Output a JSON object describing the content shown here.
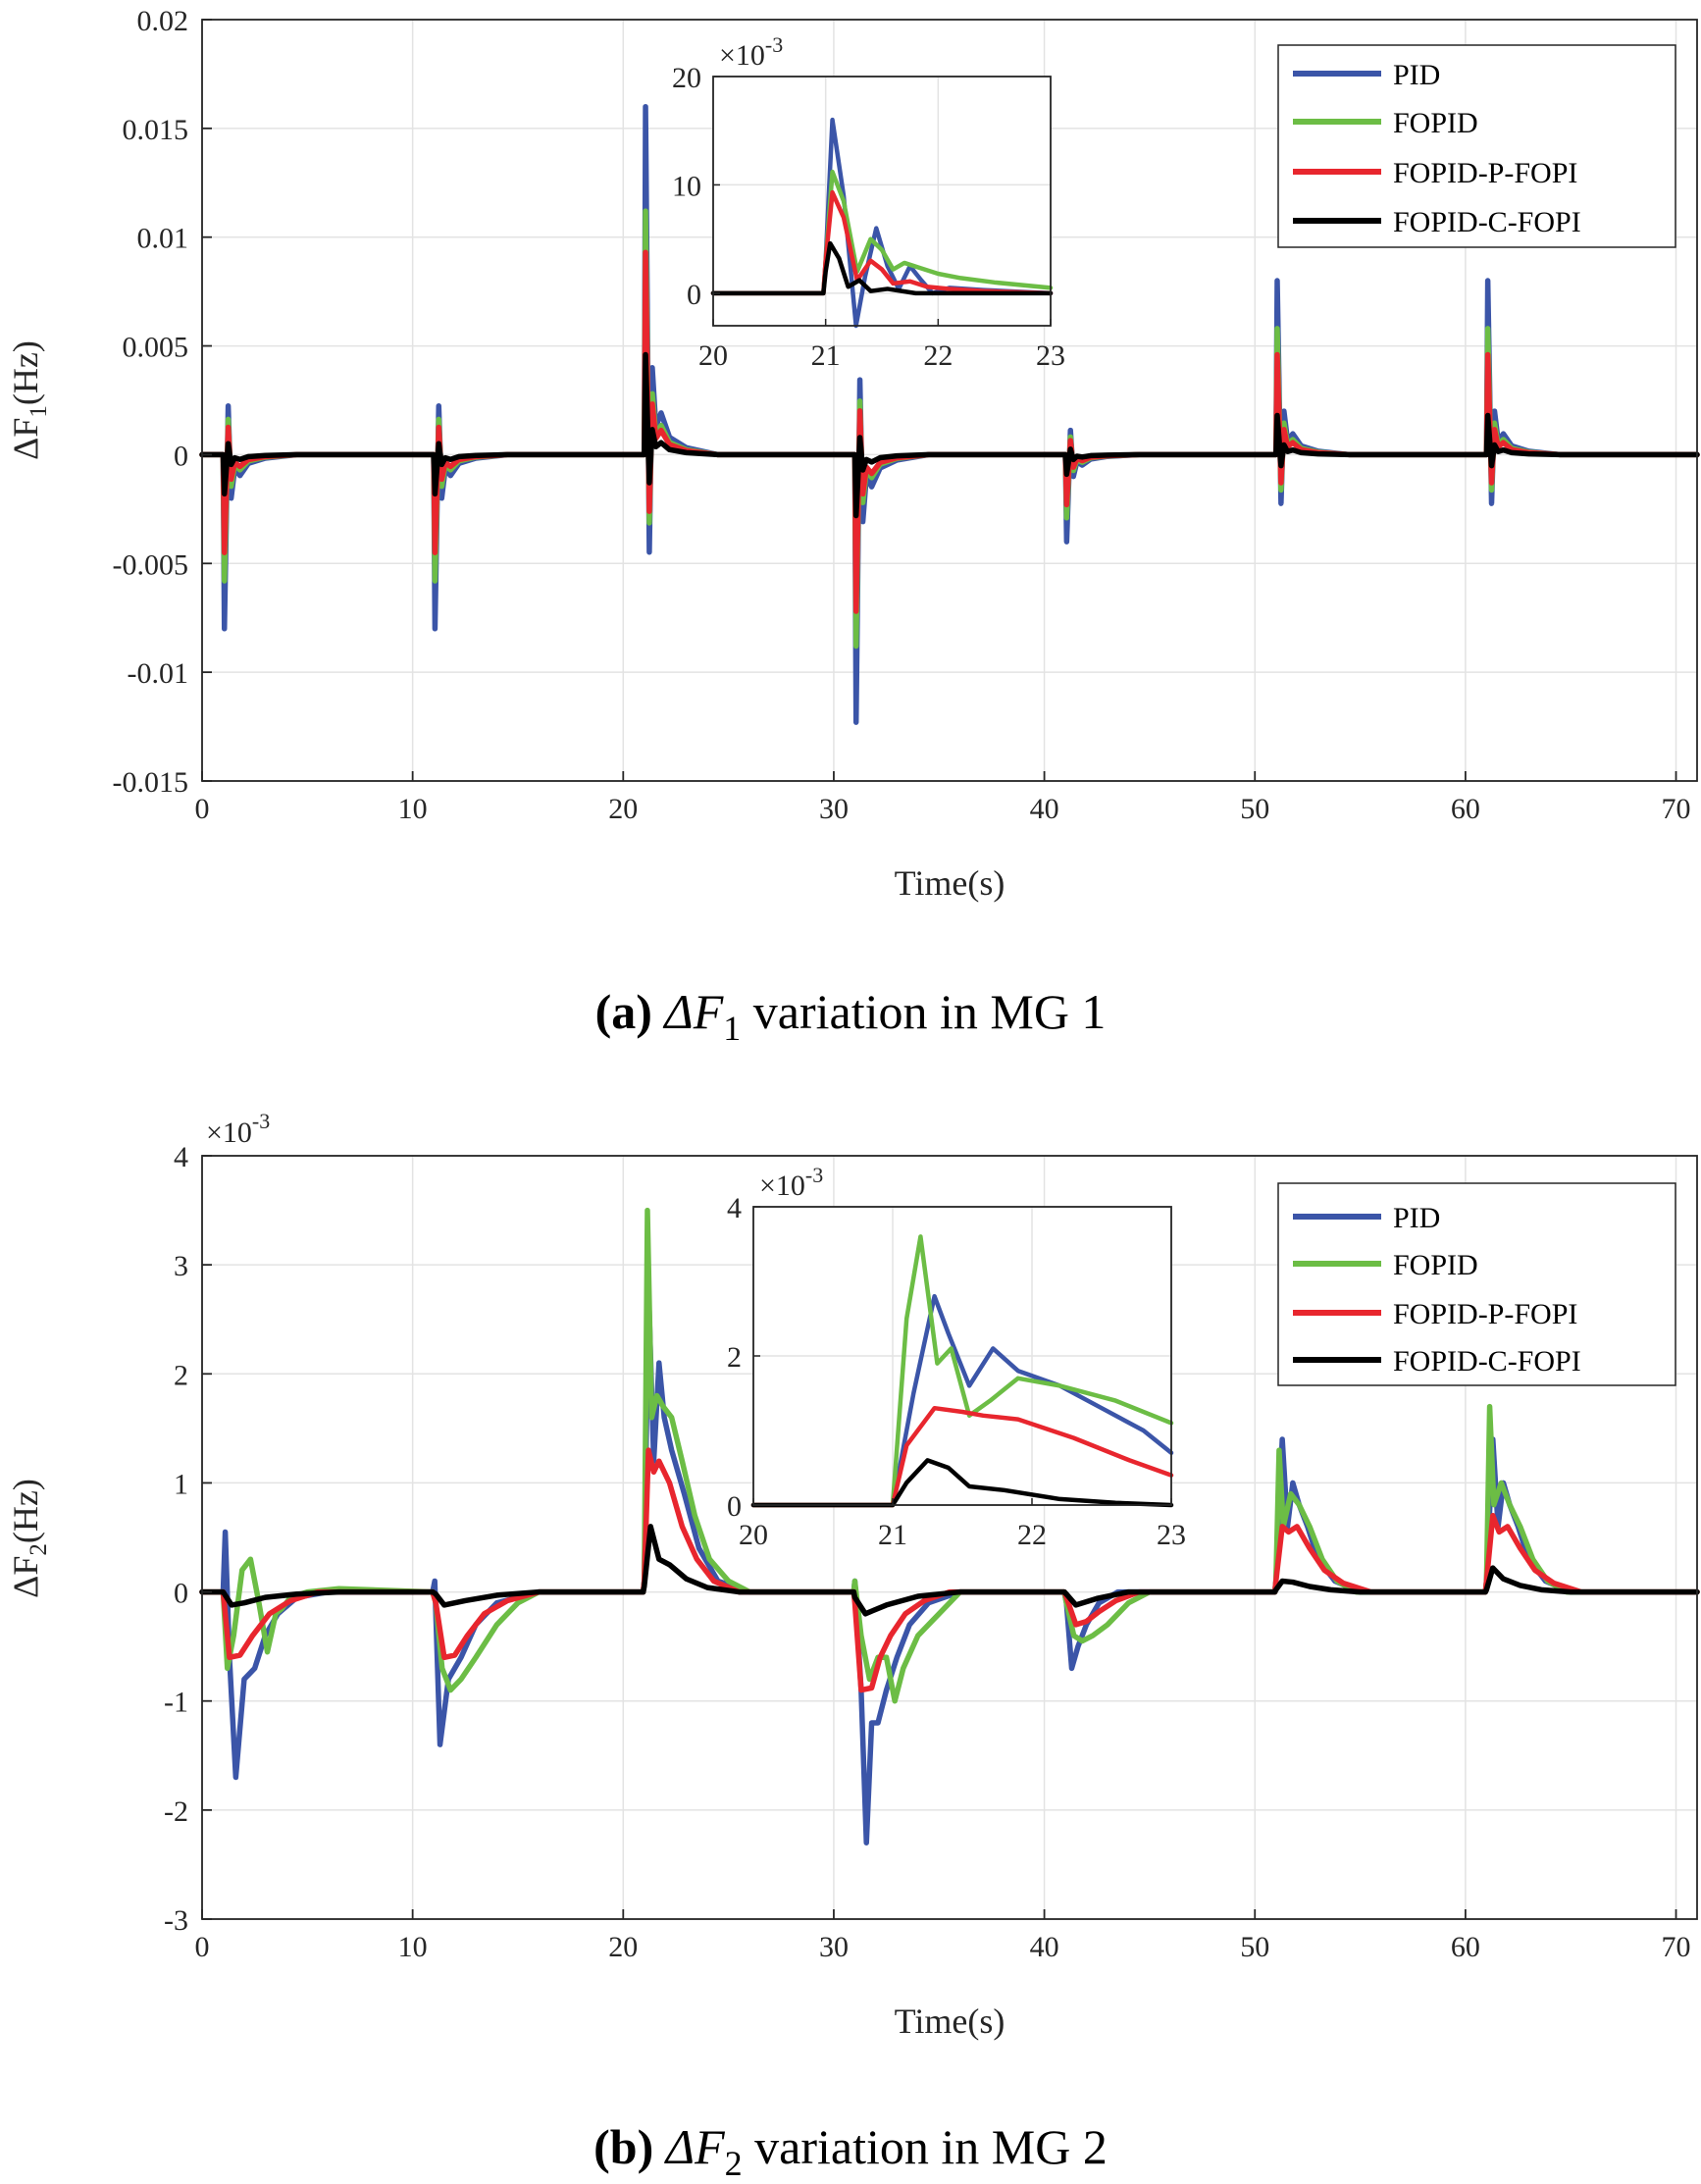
{
  "colors": {
    "PID": "#3b55a8",
    "FOPID": "#6cbd45",
    "FOPID-P-FOPI": "#e8262e",
    "FOPID-C-FOPI": "#000000"
  },
  "legend": [
    "PID",
    "FOPID",
    "FOPID-P-FOPI",
    "FOPID-C-FOPI"
  ],
  "chart_data": [
    {
      "id": "a",
      "type": "line",
      "xlabel": "Time(s)",
      "ylabel_base": "ΔF",
      "ylabel_sub": "1",
      "ylabel_unit": "(Hz)",
      "xlim": [
        0,
        71
      ],
      "ylim": [
        -0.015,
        0.02
      ],
      "xticks": [
        0,
        10,
        20,
        30,
        40,
        50,
        60,
        70
      ],
      "xtick_labels": [
        "0",
        "10",
        "20",
        "30",
        "40",
        "50",
        "60",
        "70"
      ],
      "yticks": [
        -0.015,
        -0.01,
        -0.005,
        0,
        0.005,
        0.01,
        0.015,
        0.02
      ],
      "ytick_labels": [
        "-0.015",
        "-0.01",
        "-0.005",
        "0",
        "0.005",
        "0.01",
        "0.015",
        "0.02"
      ],
      "y_exponent": "",
      "grid": true,
      "legend_position": "top-right",
      "caption_letter": "(a)",
      "caption_sym": "ΔF",
      "caption_sub": "1",
      "caption_rest": "variation in MG 1",
      "events": [
        {
          "t": 1.0,
          "peaks": {
            "PID": -0.008,
            "FOPID": -0.0058,
            "FOPID-P-FOPI": -0.0045,
            "FOPID-C-FOPI": -0.0018
          }
        },
        {
          "t": 11.0,
          "peaks": {
            "PID": -0.008,
            "FOPID": -0.0058,
            "FOPID-P-FOPI": -0.0045,
            "FOPID-C-FOPI": -0.0018
          }
        },
        {
          "t": 21.0,
          "peaks": {
            "PID": 0.016,
            "FOPID": 0.0112,
            "FOPID-P-FOPI": 0.0093,
            "FOPID-C-FOPI": 0.0046
          }
        },
        {
          "t": 31.0,
          "peaks": {
            "PID": -0.0123,
            "FOPID": -0.0088,
            "FOPID-P-FOPI": -0.0072,
            "FOPID-C-FOPI": -0.0028
          }
        },
        {
          "t": 41.0,
          "peaks": {
            "PID": -0.004,
            "FOPID": -0.0029,
            "FOPID-P-FOPI": -0.0023,
            "FOPID-C-FOPI": -0.0009
          }
        },
        {
          "t": 51.0,
          "peaks": {
            "PID": 0.008,
            "FOPID": 0.0058,
            "FOPID-P-FOPI": 0.0046,
            "FOPID-C-FOPI": 0.0018
          }
        },
        {
          "t": 61.0,
          "peaks": {
            "PID": 0.008,
            "FOPID": 0.0058,
            "FOPID-P-FOPI": 0.0046,
            "FOPID-C-FOPI": 0.0018
          }
        }
      ],
      "inset": {
        "xlim": [
          20,
          23
        ],
        "ylim": [
          -0.003,
          0.02
        ],
        "xticks": [
          20,
          21,
          22,
          23
        ],
        "xtick_labels": [
          "20",
          "21",
          "22",
          "23"
        ],
        "yticks": [
          0,
          0.01,
          0.02
        ],
        "ytick_labels": [
          "0",
          "10",
          "20"
        ],
        "y_exponent": "×10-3",
        "series": [
          {
            "name": "PID",
            "x": [
              20,
              20.98,
              21.0,
              21.06,
              21.16,
              21.27,
              21.35,
              21.45,
              21.55,
              21.65,
              21.75,
              21.85,
              21.95,
              22.1,
              22.4,
              23
            ],
            "y": [
              0,
              0,
              0.003,
              0.016,
              0.009,
              -0.003,
              0.0015,
              0.006,
              0.0025,
              0.0004,
              0.0025,
              0.0012,
              0,
              0.0005,
              0.0003,
              0
            ]
          },
          {
            "name": "FOPID",
            "x": [
              20,
              20.98,
              21.0,
              21.06,
              21.16,
              21.28,
              21.4,
              21.5,
              21.6,
              21.7,
              21.85,
              22.0,
              22.2,
              22.5,
              23
            ],
            "y": [
              0,
              0,
              0.003,
              0.0112,
              0.0085,
              0.002,
              0.005,
              0.004,
              0.0022,
              0.0028,
              0.0023,
              0.0018,
              0.0014,
              0.001,
              0.0005
            ]
          },
          {
            "name": "FOPID-P-FOPI",
            "x": [
              20,
              20.98,
              21.0,
              21.06,
              21.16,
              21.28,
              21.4,
              21.5,
              21.6,
              21.75,
              21.9,
              22.1,
              22.4,
              23
            ],
            "y": [
              0,
              0,
              0.003,
              0.0093,
              0.007,
              0.0012,
              0.003,
              0.0022,
              0.0009,
              0.0011,
              0.0006,
              0.0004,
              0.0002,
              0
            ]
          },
          {
            "name": "FOPID-C-FOPI",
            "x": [
              20,
              20.98,
              21.0,
              21.04,
              21.12,
              21.2,
              21.3,
              21.4,
              21.55,
              21.8,
              22.2,
              23
            ],
            "y": [
              0,
              0,
              0.002,
              0.0046,
              0.0032,
              0.0006,
              0.0012,
              0.0002,
              0.0004,
              0,
              0,
              0
            ]
          }
        ]
      }
    },
    {
      "id": "b",
      "type": "line",
      "xlabel": "Time(s)",
      "ylabel_base": "ΔF",
      "ylabel_sub": "2",
      "ylabel_unit": "(Hz)",
      "xlim": [
        0,
        71
      ],
      "ylim": [
        -0.003,
        0.004
      ],
      "xticks": [
        0,
        10,
        20,
        30,
        40,
        50,
        60,
        70
      ],
      "xtick_labels": [
        "0",
        "10",
        "20",
        "30",
        "40",
        "50",
        "60",
        "70"
      ],
      "yticks": [
        -0.003,
        -0.002,
        -0.001,
        0,
        0.001,
        0.002,
        0.003,
        0.004
      ],
      "ytick_labels": [
        "-3",
        "-2",
        "-1",
        "0",
        "1",
        "2",
        "3",
        "4"
      ],
      "y_exponent": "×10-3",
      "grid": true,
      "legend_position": "top-right",
      "caption_letter": "(b)",
      "caption_sym": "ΔF",
      "caption_sub": "2",
      "caption_rest": "variation in MG 2",
      "series": [
        {
          "name": "PID",
          "x": [
            0,
            1.0,
            1.1,
            1.3,
            1.6,
            2.0,
            2.5,
            3.0,
            3.6,
            4.5,
            6,
            10.95,
            11.05,
            11.3,
            11.7,
            12.3,
            13.0,
            14.0,
            16,
            20.95,
            21.0,
            21.2,
            21.45,
            21.7,
            21.95,
            22.3,
            22.9,
            23.6,
            24.5,
            26,
            30.95,
            31.0,
            31.3,
            31.55,
            31.8,
            32.1,
            32.5,
            33.0,
            33.6,
            34.5,
            36,
            40.95,
            41.05,
            41.3,
            41.6,
            42.0,
            42.6,
            43.5,
            45,
            50.95,
            51.0,
            51.3,
            51.55,
            51.8,
            52.1,
            52.5,
            53.0,
            53.8,
            55,
            60.95,
            61.0,
            61.3,
            61.55,
            61.8,
            62.1,
            62.5,
            63.0,
            63.8,
            65,
            71
          ],
          "y": [
            0,
            0,
            0.00055,
            -0.0006,
            -0.0017,
            -0.0008,
            -0.0007,
            -0.0004,
            -0.0002,
            -5e-05,
            0,
            0,
            0.0001,
            -0.0014,
            -0.0008,
            -0.0006,
            -0.0003,
            -0.0001,
            0,
            0,
            0.0001,
            0.0028,
            0.0012,
            0.0021,
            0.0016,
            0.0013,
            0.0009,
            0.0004,
            0.0001,
            0,
            0,
            0.0001,
            -0.0009,
            -0.0023,
            -0.0012,
            -0.0012,
            -0.0009,
            -0.0006,
            -0.0003,
            -0.0001,
            0,
            0,
            -0.0001,
            -0.0007,
            -0.0005,
            -0.0003,
            -0.0001,
            0,
            0,
            0,
            0.0001,
            0.0014,
            0.0006,
            0.001,
            0.0008,
            0.0006,
            0.0003,
            0.0001,
            0,
            0,
            0.0001,
            0.0014,
            0.0006,
            0.001,
            0.0008,
            0.0006,
            0.0003,
            0.0001,
            0,
            0
          ]
        },
        {
          "name": "FOPID",
          "x": [
            0,
            1.0,
            1.2,
            1.5,
            1.9,
            2.3,
            2.7,
            3.1,
            3.5,
            3.8,
            4.2,
            5,
            6.5,
            10.95,
            11.1,
            11.4,
            11.8,
            12.3,
            13.0,
            14.0,
            15.0,
            16,
            20.95,
            21.0,
            21.15,
            21.35,
            21.6,
            21.9,
            22.3,
            22.8,
            23.4,
            24.1,
            25,
            26,
            30.95,
            31.0,
            31.3,
            31.7,
            32.1,
            32.5,
            32.9,
            33.3,
            34,
            35,
            36,
            40.95,
            41.05,
            41.4,
            41.8,
            42.3,
            43.0,
            44,
            45,
            50.95,
            51.0,
            51.15,
            51.35,
            51.7,
            52.1,
            52.6,
            53.2,
            53.9,
            54.8,
            56,
            60.95,
            61.0,
            61.15,
            61.35,
            61.7,
            62.1,
            62.6,
            63.2,
            63.9,
            64.8,
            66,
            71
          ],
          "y": [
            0,
            0,
            -0.0007,
            -0.0004,
            0.0002,
            0.0003,
            -0.0001,
            -0.00055,
            -0.0002,
            -0.00015,
            -5e-05,
            0,
            3e-05,
            0,
            -0.0001,
            -0.0007,
            -0.0009,
            -0.0008,
            -0.0006,
            -0.0003,
            -0.0001,
            0,
            0,
            0.0001,
            0.0035,
            0.0016,
            0.0018,
            0.0017,
            0.0016,
            0.0012,
            0.0007,
            0.0003,
            0.0001,
            0,
            0,
            0.0001,
            -0.0004,
            -0.0008,
            -0.0006,
            -0.0006,
            -0.001,
            -0.0007,
            -0.0004,
            -0.0002,
            0,
            0,
            -0.0001,
            -0.0004,
            -0.00045,
            -0.0004,
            -0.0003,
            -0.0001,
            0,
            0,
            0.0001,
            0.0013,
            0.0006,
            0.0009,
            0.0008,
            0.0006,
            0.0003,
            0.0001,
            0,
            0,
            0,
            0.0001,
            0.0017,
            0.0008,
            0.001,
            0.0008,
            0.0006,
            0.0003,
            0.0001,
            0,
            0,
            0
          ]
        },
        {
          "name": "FOPID-P-FOPI",
          "x": [
            0,
            1.0,
            1.3,
            1.8,
            2.4,
            3.2,
            4.2,
            5.5,
            10.95,
            11.1,
            11.5,
            12.0,
            12.6,
            13.4,
            14.5,
            16,
            20.95,
            21.0,
            21.2,
            21.45,
            21.7,
            22.2,
            22.8,
            23.5,
            24.3,
            25.5,
            30.95,
            31.0,
            31.3,
            31.8,
            32.2,
            32.7,
            33.4,
            34.3,
            35.5,
            40.95,
            41.05,
            41.5,
            42.0,
            42.6,
            43.4,
            44.5,
            50.95,
            51.0,
            51.3,
            51.6,
            52.0,
            52.6,
            53.3,
            54.2,
            55.5,
            60.95,
            61.0,
            61.3,
            61.6,
            62.0,
            62.6,
            63.3,
            64.2,
            65.5,
            71
          ],
          "y": [
            0,
            0,
            -0.0006,
            -0.00058,
            -0.0004,
            -0.0002,
            -8e-05,
            0,
            0,
            -0.0001,
            -0.0006,
            -0.00058,
            -0.0004,
            -0.0002,
            -8e-05,
            0,
            0,
            0.0001,
            0.0013,
            0.0011,
            0.0012,
            0.001,
            0.0006,
            0.0003,
            0.0001,
            0,
            0,
            -0.0001,
            -0.0009,
            -0.00088,
            -0.0006,
            -0.0004,
            -0.0002,
            -8e-05,
            0,
            0,
            -5e-05,
            -0.0003,
            -0.00027,
            -0.00018,
            -8e-05,
            0,
            0,
            0.0001,
            0.0006,
            0.00055,
            0.0006,
            0.0004,
            0.0002,
            8e-05,
            0,
            0,
            0.0001,
            0.0007,
            0.00055,
            0.0006,
            0.0004,
            0.0002,
            8e-05,
            0,
            0
          ]
        },
        {
          "name": "FOPID-C-FOPI",
          "x": [
            0,
            1.0,
            1.4,
            2.0,
            3.0,
            4.5,
            6.5,
            10.95,
            11.1,
            11.5,
            12.5,
            14.0,
            16,
            20.95,
            21.0,
            21.3,
            21.7,
            22.2,
            23.0,
            24.0,
            25.5,
            30.95,
            31.0,
            31.5,
            32.5,
            34.0,
            36,
            40.95,
            41.05,
            41.5,
            42.5,
            44.0,
            50.95,
            51.0,
            51.3,
            51.8,
            52.6,
            53.6,
            55,
            60.95,
            61.0,
            61.3,
            61.8,
            62.6,
            63.6,
            65,
            71
          ],
          "y": [
            0,
            0,
            -0.00012,
            -0.0001,
            -5e-05,
            -2e-05,
            0,
            0,
            -2e-05,
            -0.00012,
            -8e-05,
            -3e-05,
            0,
            0,
            5e-05,
            0.0006,
            0.0003,
            0.00025,
            0.00012,
            4e-05,
            0,
            0,
            -5e-05,
            -0.0002,
            -0.00012,
            -4e-05,
            0,
            0,
            -2e-05,
            -0.00012,
            -6e-05,
            0,
            0,
            2e-05,
            0.0001,
            9e-05,
            5e-05,
            2e-05,
            0,
            0,
            2e-05,
            0.00022,
            0.00012,
            6e-05,
            2e-05,
            0,
            0
          ]
        }
      ],
      "inset": {
        "xlim": [
          20,
          23
        ],
        "ylim": [
          0,
          0.004
        ],
        "xticks": [
          20,
          21,
          22,
          23
        ],
        "xtick_labels": [
          "20",
          "21",
          "22",
          "23"
        ],
        "yticks": [
          0,
          0.002,
          0.004
        ],
        "ytick_labels": [
          "0",
          "2",
          "4"
        ],
        "y_exponent": "×10-3",
        "series": [
          {
            "name": "PID",
            "x": [
              20,
              21.0,
              21.15,
              21.3,
              21.4,
              21.55,
              21.72,
              21.9,
              22.2,
              22.5,
              22.8,
              23
            ],
            "y": [
              0,
              0,
              0.0015,
              0.0028,
              0.0023,
              0.0016,
              0.0021,
              0.0018,
              0.0016,
              0.0013,
              0.001,
              0.0007
            ]
          },
          {
            "name": "FOPID",
            "x": [
              20,
              21.0,
              21.1,
              21.2,
              21.32,
              21.42,
              21.55,
              21.7,
              21.9,
              22.2,
              22.6,
              23
            ],
            "y": [
              0,
              0,
              0.0025,
              0.0036,
              0.0019,
              0.0021,
              0.0012,
              0.0014,
              0.0017,
              0.0016,
              0.0014,
              0.0011
            ]
          },
          {
            "name": "FOPID-P-FOPI",
            "x": [
              20,
              21.0,
              21.1,
              21.3,
              21.5,
              21.65,
              21.9,
              22.3,
              22.7,
              23
            ],
            "y": [
              0,
              0,
              0.0008,
              0.0013,
              0.00125,
              0.0012,
              0.00115,
              0.0009,
              0.0006,
              0.0004
            ]
          },
          {
            "name": "FOPID-C-FOPI",
            "x": [
              20,
              21.0,
              21.1,
              21.25,
              21.4,
              21.55,
              21.8,
              22.2,
              22.6,
              23
            ],
            "y": [
              0,
              0,
              0.0003,
              0.0006,
              0.0005,
              0.00025,
              0.0002,
              8e-05,
              3e-05,
              0
            ]
          }
        ]
      }
    }
  ]
}
